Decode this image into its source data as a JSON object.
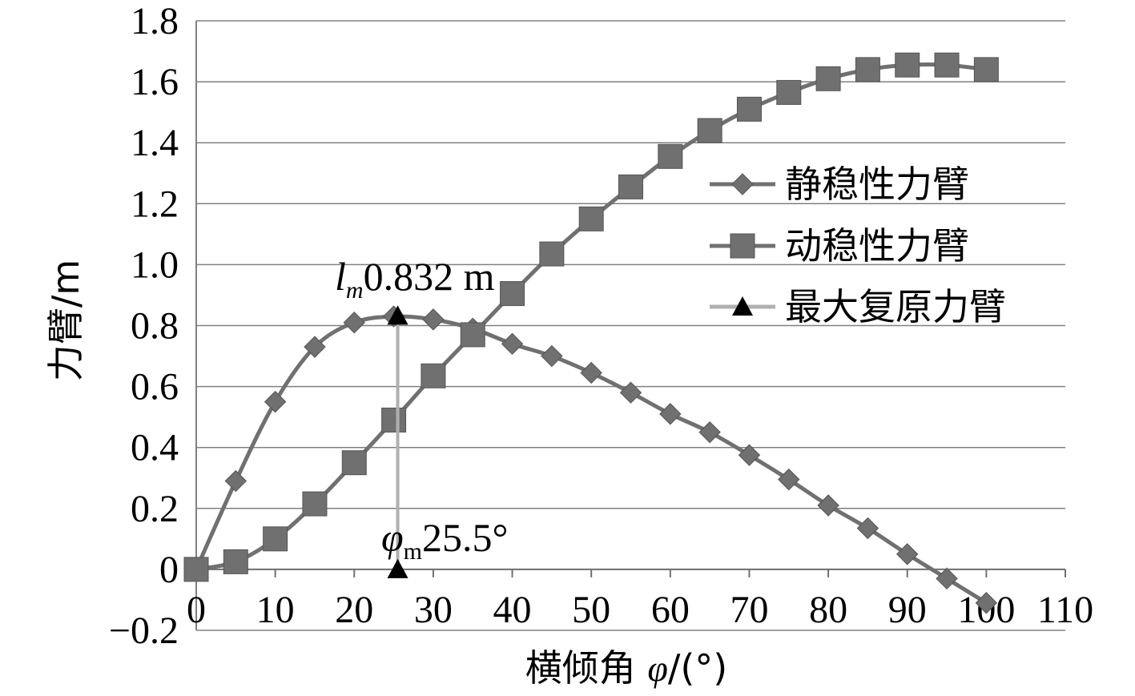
{
  "chart_data": {
    "type": "line",
    "xlabel_main": "横倾角 ",
    "xlabel_symbol": "φ",
    "xlabel_unit": "/(°)",
    "ylabel": "力臂/m",
    "xlim": [
      0,
      110
    ],
    "ylim": [
      -0.2,
      1.8
    ],
    "xticks": [
      0,
      10,
      20,
      30,
      40,
      50,
      60,
      70,
      80,
      90,
      100,
      110
    ],
    "yticks": [
      -0.2,
      0,
      0.2,
      0.4,
      0.6,
      0.8,
      1.0,
      1.2,
      1.4,
      1.6,
      1.8
    ],
    "ytick_labels": [
      "−0.2",
      "0",
      "0.2",
      "0.4",
      "0.6",
      "0.8",
      "1.0",
      "1.2",
      "1.4",
      "1.6",
      "1.8"
    ],
    "grid": "horizontal",
    "legend_position": "right",
    "series": [
      {
        "name": "静稳性力臂",
        "marker": "diamond",
        "color": "#707070",
        "x": [
          0,
          5,
          10,
          15,
          20,
          25,
          30,
          35,
          40,
          45,
          50,
          55,
          60,
          65,
          70,
          75,
          80,
          85,
          90,
          95,
          100
        ],
        "y": [
          0,
          0.29,
          0.55,
          0.73,
          0.81,
          0.83,
          0.82,
          0.79,
          0.74,
          0.7,
          0.645,
          0.58,
          0.51,
          0.45,
          0.375,
          0.295,
          0.21,
          0.135,
          0.05,
          -0.03,
          -0.11
        ]
      },
      {
        "name": "动稳性力臂",
        "marker": "square",
        "color": "#707070",
        "x": [
          0,
          5,
          10,
          15,
          20,
          25,
          30,
          35,
          40,
          45,
          50,
          55,
          60,
          65,
          70,
          75,
          80,
          85,
          90,
          95,
          100
        ],
        "y": [
          0,
          0.025,
          0.1,
          0.215,
          0.35,
          0.49,
          0.635,
          0.77,
          0.905,
          1.035,
          1.15,
          1.255,
          1.355,
          1.44,
          1.51,
          1.565,
          1.61,
          1.64,
          1.655,
          1.655,
          1.64
        ]
      },
      {
        "name": "最大复原力臂",
        "marker": "triangle",
        "color": "#b0b0b0",
        "x": [
          25.5,
          25.5
        ],
        "y": [
          0,
          0.832
        ]
      }
    ],
    "annotations": [
      {
        "symbol": "l",
        "sub": "m",
        "text": "0.832 m"
      },
      {
        "symbol": "φ",
        "sub": "m",
        "text": "25.5°"
      }
    ]
  }
}
